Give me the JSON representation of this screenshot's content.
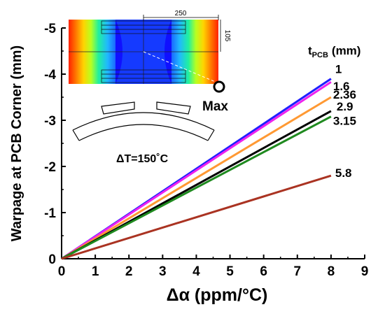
{
  "chart_data": {
    "type": "line",
    "xlabel": "Δα (ppm/°C)",
    "ylabel": "Warpage at  PCB Corner (mm)",
    "xlim": [
      0,
      9
    ],
    "ylim": [
      0,
      -5
    ],
    "xticks": [
      0,
      1,
      2,
      3,
      4,
      5,
      6,
      7,
      8,
      9
    ],
    "yticks": [
      0,
      -1,
      -2,
      -3,
      -4,
      -5
    ],
    "legend_title": "t",
    "legend_title_sub": "PCB",
    "legend_title_unit": "(mm)",
    "series": [
      {
        "name": "1",
        "color": "#1f1fff",
        "x": [
          0,
          8
        ],
        "y": [
          0,
          -3.9
        ]
      },
      {
        "name": "1.6",
        "color": "#ee22ee",
        "x": [
          0,
          8
        ],
        "y": [
          0,
          -3.83
        ]
      },
      {
        "name": "2.36",
        "color": "#ff9933",
        "x": [
          0,
          8
        ],
        "y": [
          0,
          -3.5
        ]
      },
      {
        "name": "2.9",
        "color": "#000000",
        "x": [
          0,
          8
        ],
        "y": [
          0,
          -3.2
        ]
      },
      {
        "name": "3.15",
        "color": "#1f8a1f",
        "x": [
          0,
          8
        ],
        "y": [
          0,
          -3.08
        ]
      },
      {
        "name": "5.8",
        "color": "#aa3322",
        "x": [
          0,
          8
        ],
        "y": [
          0,
          -1.8
        ]
      }
    ],
    "grid": false
  },
  "inset": {
    "dim_width": "250",
    "dim_height": "105",
    "max_label": "Max",
    "temp_label": "ΔT=150˚C"
  }
}
